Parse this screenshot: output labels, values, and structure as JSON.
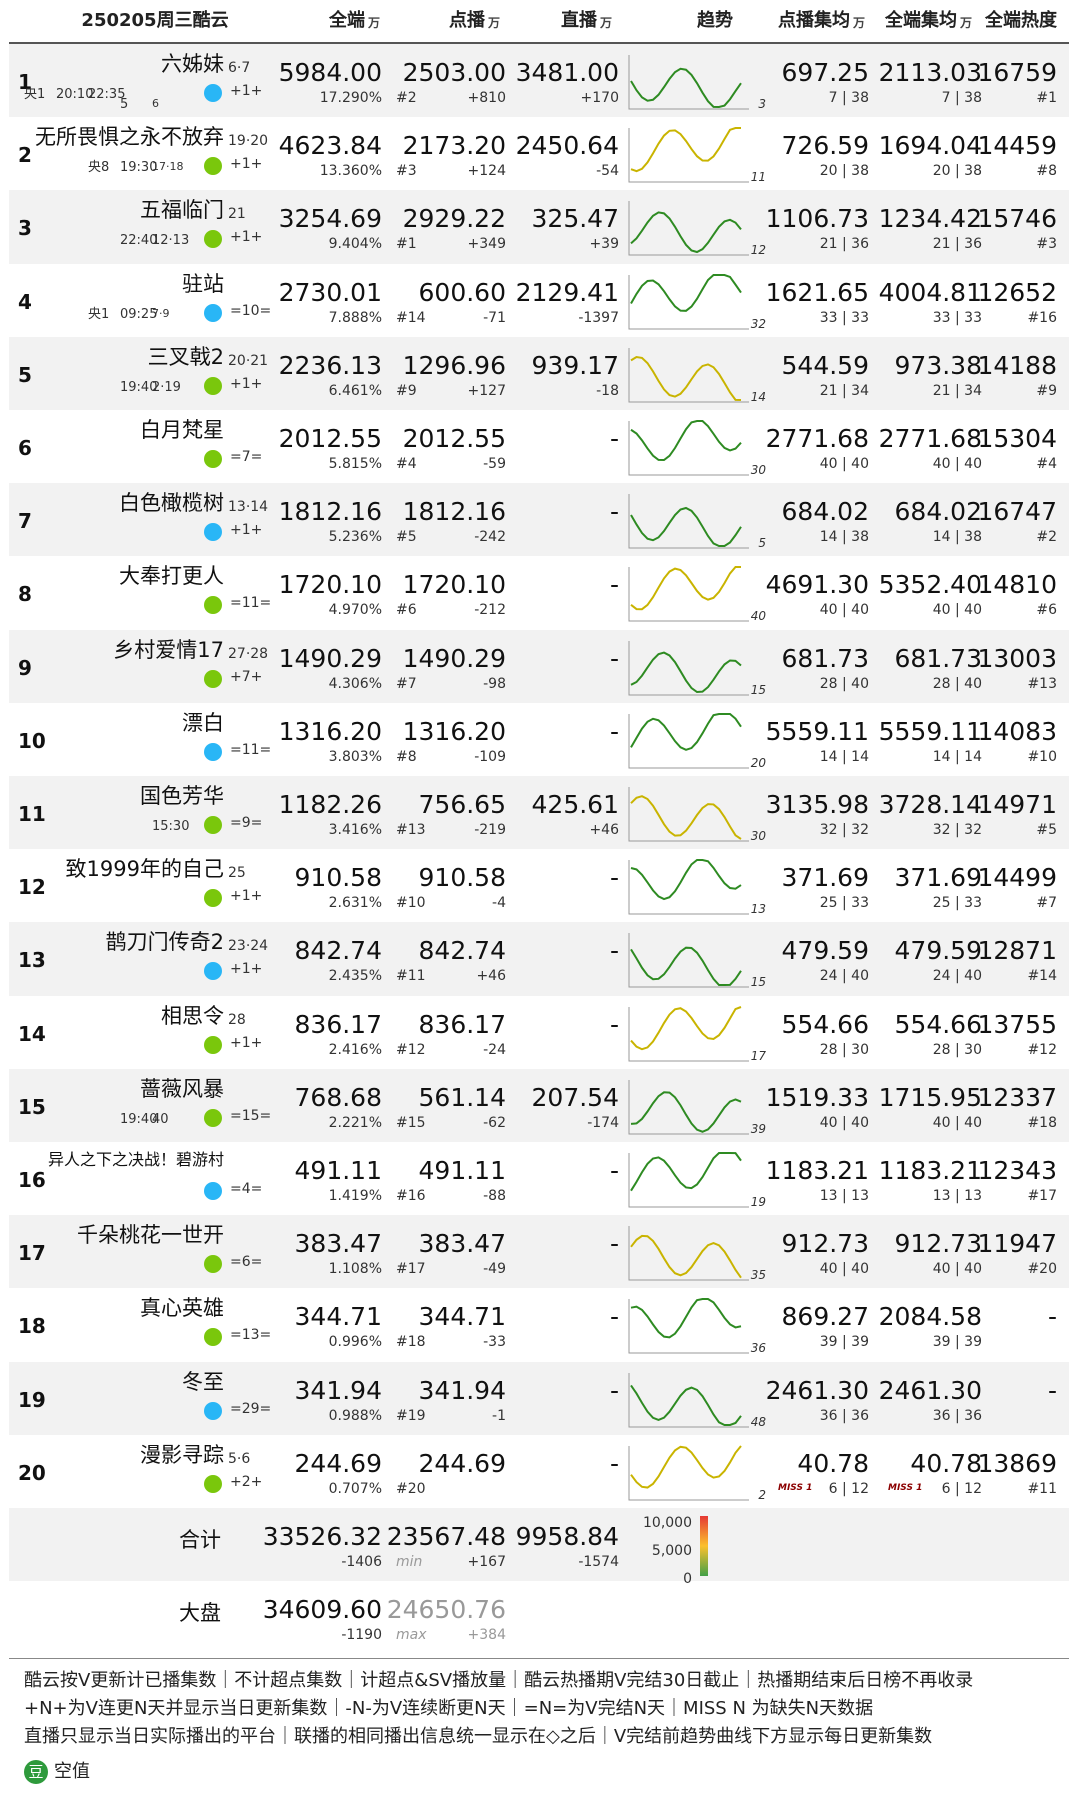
{
  "header": {
    "title": "250205周三酷云",
    "columns": [
      {
        "label": "全端",
        "unit": "万"
      },
      {
        "label": "点播",
        "unit": "万"
      },
      {
        "label": "直播",
        "unit": "万"
      },
      {
        "label": "趋势"
      },
      {
        "label": "点播集均",
        "unit": "万"
      },
      {
        "label": "全端集均",
        "unit": "万"
      },
      {
        "label": "全端热度"
      }
    ]
  },
  "table": {
    "rows": [
      {
        "rank": "1",
        "name": "六姊妹",
        "episodes": "6·7",
        "meta": [
          "央1",
          "20:10",
          "22:35",
          "5",
          "6"
        ],
        "update": "+1+",
        "total": "5984.00",
        "total_share": "17.290%",
        "vod": "2503.00",
        "vod_rank": "#2",
        "vod_change": "+810",
        "live": "3481.00",
        "live_change": "+170",
        "trend_note": "3",
        "vod_avg": "697.25",
        "vod_avg_detail": "7 | 38",
        "all_avg": "2113.03",
        "all_avg_detail": "7 | 38",
        "heat": "16759",
        "heat_rank": "#1"
      },
      {
        "rank": "2",
        "name": "无所畏惧之永不放弃",
        "episodes": "19·20",
        "meta": [
          "央8",
          "19:30",
          "17·18"
        ],
        "update": "+1+",
        "total": "4623.84",
        "total_share": "13.360%",
        "vod": "2173.20",
        "vod_rank": "#3",
        "vod_change": "+124",
        "live": "2450.64",
        "live_change": "-54",
        "trend_note": "11",
        "vod_avg": "726.59",
        "vod_avg_detail": "20 | 38",
        "all_avg": "1694.04",
        "all_avg_detail": "20 | 38",
        "heat": "14459",
        "heat_rank": "#8"
      },
      {
        "rank": "3",
        "name": "五福临门",
        "episodes": "21",
        "meta": [
          "22:40",
          "12·13"
        ],
        "update": "+1+",
        "total": "3254.69",
        "total_share": "9.404%",
        "vod": "2929.22",
        "vod_rank": "#1",
        "vod_change": "+349",
        "live": "325.47",
        "live_change": "+39",
        "trend_note": "12",
        "vod_avg": "1106.73",
        "vod_avg_detail": "21 | 36",
        "all_avg": "1234.42",
        "all_avg_detail": "21 | 36",
        "heat": "15746",
        "heat_rank": "#3"
      },
      {
        "rank": "4",
        "name": "驻站",
        "meta": [
          "央1",
          "09:25",
          "7·9"
        ],
        "update": "=10=",
        "total": "2730.01",
        "total_share": "7.888%",
        "vod": "600.60",
        "vod_rank": "#14",
        "vod_change": "-71",
        "live": "2129.41",
        "live_change": "-1397",
        "trend_note": "32",
        "vod_avg": "1621.65",
        "vod_avg_detail": "33 | 33",
        "all_avg": "4004.81",
        "all_avg_detail": "33 | 33",
        "heat": "12652",
        "heat_rank": "#16"
      },
      {
        "rank": "5",
        "name": "三叉戟2",
        "episodes": "20·21",
        "meta": [
          "19:40",
          "2·19"
        ],
        "update": "+1+",
        "total": "2236.13",
        "total_share": "6.461%",
        "vod": "1296.96",
        "vod_rank": "#9",
        "vod_change": "+127",
        "live": "939.17",
        "live_change": "-18",
        "trend_note": "14",
        "vod_avg": "544.59",
        "vod_avg_detail": "21 | 34",
        "all_avg": "973.38",
        "all_avg_detail": "21 | 34",
        "heat": "14188",
        "heat_rank": "#9"
      },
      {
        "rank": "6",
        "name": "白月梵星",
        "update": "=7=",
        "total": "2012.55",
        "total_share": "5.815%",
        "vod": "2012.55",
        "vod_rank": "#4",
        "vod_change": "-59",
        "live": "-",
        "trend_note": "30",
        "vod_avg": "2771.68",
        "vod_avg_detail": "40 | 40",
        "all_avg": "2771.68",
        "all_avg_detail": "40 | 40",
        "heat": "15304",
        "heat_rank": "#4"
      },
      {
        "rank": "7",
        "name": "白色橄榄树",
        "episodes": "13·14",
        "update": "+1+",
        "total": "1812.16",
        "total_share": "5.236%",
        "vod": "1812.16",
        "vod_rank": "#5",
        "vod_change": "-242",
        "live": "-",
        "trend_note": "5",
        "vod_avg": "684.02",
        "vod_avg_detail": "14 | 38",
        "all_avg": "684.02",
        "all_avg_detail": "14 | 38",
        "heat": "16747",
        "heat_rank": "#2"
      },
      {
        "rank": "8",
        "name": "大奉打更人",
        "update": "=11=",
        "total": "1720.10",
        "total_share": "4.970%",
        "vod": "1720.10",
        "vod_rank": "#6",
        "vod_change": "-212",
        "live": "-",
        "trend_note": "40",
        "vod_avg": "4691.30",
        "vod_avg_detail": "40 | 40",
        "all_avg": "5352.40",
        "all_avg_detail": "40 | 40",
        "heat": "14810",
        "heat_rank": "#6"
      },
      {
        "rank": "9",
        "name": "乡村爱情17",
        "episodes": "27·28",
        "update": "+7+",
        "total": "1490.29",
        "total_share": "4.306%",
        "vod": "1490.29",
        "vod_rank": "#7",
        "vod_change": "-98",
        "live": "-",
        "trend_note": "15",
        "vod_avg": "681.73",
        "vod_avg_detail": "28 | 40",
        "all_avg": "681.73",
        "all_avg_detail": "28 | 40",
        "heat": "13003",
        "heat_rank": "#13"
      },
      {
        "rank": "10",
        "name": "漂白",
        "update": "=11=",
        "total": "1316.20",
        "total_share": "3.803%",
        "vod": "1316.20",
        "vod_rank": "#8",
        "vod_change": "-109",
        "live": "-",
        "trend_note": "20",
        "vod_avg": "5559.11",
        "vod_avg_detail": "14 | 14",
        "all_avg": "5559.11",
        "all_avg_detail": "14 | 14",
        "heat": "14083",
        "heat_rank": "#10"
      },
      {
        "rank": "11",
        "name": "国色芳华",
        "meta": [
          "15:30"
        ],
        "update": "=9=",
        "total": "1182.26",
        "total_share": "3.416%",
        "vod": "756.65",
        "vod_rank": "#13",
        "vod_change": "-219",
        "live": "425.61",
        "live_change": "+46",
        "trend_note": "30",
        "vod_avg": "3135.98",
        "vod_avg_detail": "32 | 32",
        "all_avg": "3728.14",
        "all_avg_detail": "32 | 32",
        "heat": "14971",
        "heat_rank": "#5"
      },
      {
        "rank": "12",
        "name": "致1999年的自己",
        "episodes": "25",
        "update": "+1+",
        "total": "910.58",
        "total_share": "2.631%",
        "vod": "910.58",
        "vod_rank": "#10",
        "vod_change": "-4",
        "live": "-",
        "trend_note": "13",
        "vod_avg": "371.69",
        "vod_avg_detail": "25 | 33",
        "all_avg": "371.69",
        "all_avg_detail": "25 | 33",
        "heat": "14499",
        "heat_rank": "#7"
      },
      {
        "rank": "13",
        "name": "鹊刀门传奇2",
        "episodes": "23·24",
        "update": "+1+",
        "total": "842.74",
        "total_share": "2.435%",
        "vod": "842.74",
        "vod_rank": "#11",
        "vod_change": "+46",
        "live": "-",
        "trend_note": "15",
        "vod_avg": "479.59",
        "vod_avg_detail": "24 | 40",
        "all_avg": "479.59",
        "all_avg_detail": "24 | 40",
        "heat": "12871",
        "heat_rank": "#14"
      },
      {
        "rank": "14",
        "name": "相思令",
        "episodes": "28",
        "update": "+1+",
        "total": "836.17",
        "total_share": "2.416%",
        "vod": "836.17",
        "vod_rank": "#12",
        "vod_change": "-24",
        "live": "-",
        "trend_note": "17",
        "vod_avg": "554.66",
        "vod_avg_detail": "28 | 30",
        "all_avg": "554.66",
        "all_avg_detail": "28 | 30",
        "heat": "13755",
        "heat_rank": "#12"
      },
      {
        "rank": "15",
        "name": "蔷薇风暴",
        "meta": [
          "19:40",
          "40"
        ],
        "update": "=15=",
        "total": "768.68",
        "total_share": "2.221%",
        "vod": "561.14",
        "vod_rank": "#15",
        "vod_change": "-62",
        "live": "207.54",
        "live_change": "-174",
        "trend_note": "39",
        "vod_avg": "1519.33",
        "vod_avg_detail": "40 | 40",
        "all_avg": "1715.95",
        "all_avg_detail": "40 | 40",
        "heat": "12337",
        "heat_rank": "#18"
      },
      {
        "rank": "16",
        "name": "异人之下之决战！碧游村",
        "update": "=4=",
        "total": "491.11",
        "total_share": "1.419%",
        "vod": "491.11",
        "vod_rank": "#16",
        "vod_change": "-88",
        "live": "-",
        "trend_note": "19",
        "vod_avg": "1183.21",
        "vod_avg_detail": "13 | 13",
        "all_avg": "1183.21",
        "all_avg_detail": "13 | 13",
        "heat": "12343",
        "heat_rank": "#17"
      },
      {
        "rank": "17",
        "name": "千朵桃花一世开",
        "update": "=6=",
        "total": "383.47",
        "total_share": "1.108%",
        "vod": "383.47",
        "vod_rank": "#17",
        "vod_change": "-49",
        "live": "-",
        "trend_note": "35",
        "vod_avg": "912.73",
        "vod_avg_detail": "40 | 40",
        "all_avg": "912.73",
        "all_avg_detail": "40 | 40",
        "heat": "11947",
        "heat_rank": "#20"
      },
      {
        "rank": "18",
        "name": "真心英雄",
        "update": "=13=",
        "total": "344.71",
        "total_share": "0.996%",
        "vod": "344.71",
        "vod_rank": "#18",
        "vod_change": "-33",
        "live": "-",
        "trend_note": "36",
        "vod_avg": "869.27",
        "vod_avg_detail": "39 | 39",
        "all_avg": "2084.58",
        "all_avg_detail": "39 | 39",
        "heat": "-"
      },
      {
        "rank": "19",
        "name": "冬至",
        "update": "=29=",
        "total": "341.94",
        "total_share": "0.988%",
        "vod": "341.94",
        "vod_rank": "#19",
        "vod_change": "-1",
        "live": "-",
        "trend_note": "48",
        "vod_avg": "2461.30",
        "vod_avg_detail": "36 | 36",
        "all_avg": "2461.30",
        "all_avg_detail": "36 | 36",
        "heat": "-"
      },
      {
        "rank": "20",
        "name": "漫影寻踪",
        "episodes": "5·6",
        "update": "+2+",
        "total": "244.69",
        "total_share": "0.707%",
        "vod": "244.69",
        "vod_rank": "#20",
        "live": "-",
        "trend_note": "2",
        "vod_avg": "40.78",
        "vod_avg_miss": "MISS 1",
        "vod_avg_detail": "6 | 12",
        "all_avg": "40.78",
        "all_avg_miss": "MISS 1",
        "all_avg_detail": "6 | 12",
        "heat": "13869",
        "heat_rank": "#11"
      }
    ],
    "totals": [
      {
        "label": "合计",
        "total": "33526.32",
        "total_change": "-1406",
        "vod": "23567.48",
        "vod_note": "min",
        "vod_change": "+167",
        "live": "9958.84",
        "live_change": "-1574"
      },
      {
        "label": "大盘",
        "total": "34609.60",
        "total_change": "-1190",
        "vod": "24650.76",
        "vod_note": "max",
        "vod_change": "+384"
      }
    ],
    "scale_legend": [
      "10,000",
      "5,000",
      "0"
    ]
  },
  "footer": {
    "lines": [
      "酷云按V更新计已播集数｜不计超点集数｜计超点&SV播放量｜酷云热播期V完结30日截止｜热播期结束后日榜不再收录",
      "+N+为V连更N天并显示当日更新集数｜-N-为V连续断更N天｜=N=为V完结N天｜MISS N 为缺失N天数据",
      "直播只显示当日实际播出的平台｜联播的相同播出信息统一显示在◇之后｜V完结前趋势曲线下方显示每日更新集数"
    ],
    "badge": "豆",
    "empty_label": "空值"
  }
}
